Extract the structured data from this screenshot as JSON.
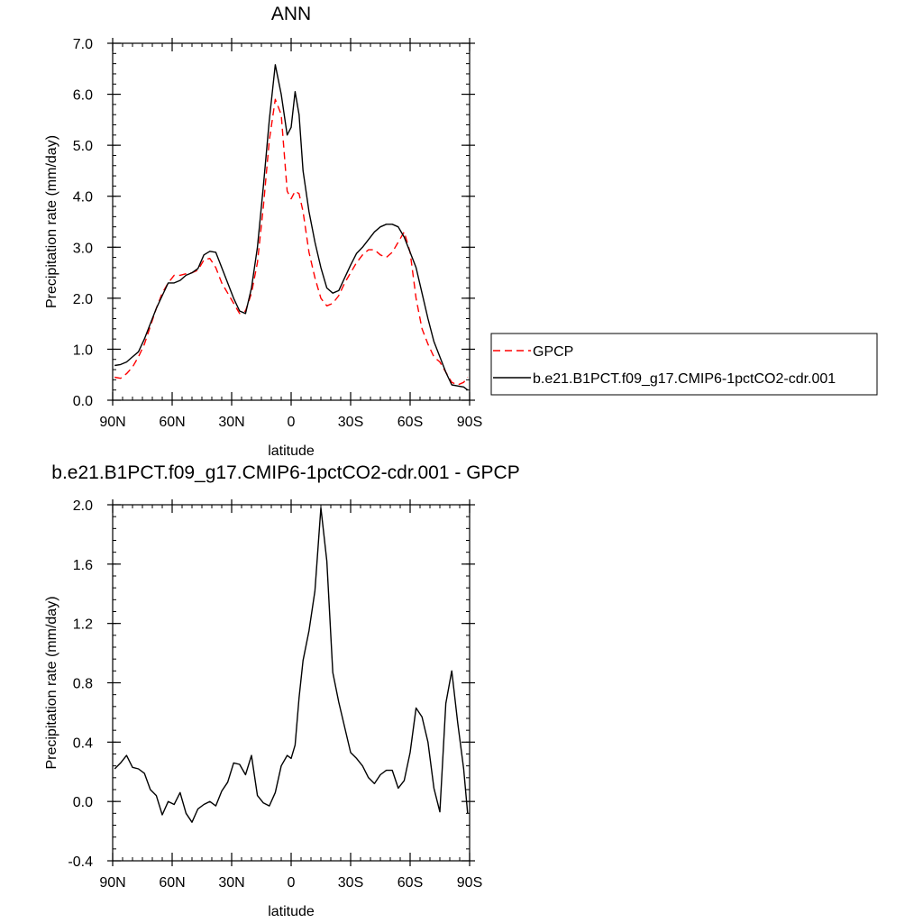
{
  "chart_data": [
    {
      "type": "line",
      "title": "ANN",
      "xlabel": "latitude",
      "ylabel": "Precipitation rate (mm/day)",
      "xlim": [
        -90,
        90
      ],
      "ylim": [
        0,
        7
      ],
      "x_ticks": [
        -90,
        -60,
        -30,
        0,
        30,
        60,
        90
      ],
      "x_tick_labels": [
        "90N",
        "60N",
        "30N",
        "0",
        "30S",
        "60S",
        "90S"
      ],
      "y_ticks": [
        0,
        1,
        2,
        3,
        4,
        5,
        6,
        7
      ],
      "y_tick_labels": [
        "0.0",
        "1.0",
        "2.0",
        "3.0",
        "4.0",
        "5.0",
        "6.0",
        "7.0"
      ],
      "legend_position": "right",
      "series": [
        {
          "name": "GPCP",
          "color": "#ff0000",
          "style": "dashed",
          "x": [
            -89,
            -86,
            -83,
            -80,
            -77,
            -74,
            -71,
            -68,
            -65,
            -62,
            -59,
            -56,
            -53,
            -50,
            -47,
            -44,
            -41,
            -38,
            -35,
            -32,
            -29,
            -26,
            -23,
            -20,
            -17,
            -14,
            -11,
            -8,
            -5,
            -2,
            0,
            2,
            4,
            6,
            9,
            12,
            15,
            18,
            21,
            24,
            27,
            30,
            33,
            36,
            39,
            42,
            45,
            48,
            51,
            54,
            57,
            60,
            63,
            66,
            69,
            72,
            75,
            78,
            81,
            84,
            87,
            89
          ],
          "y": [
            0.45,
            0.43,
            0.52,
            0.65,
            0.85,
            1.1,
            1.45,
            1.8,
            2.1,
            2.3,
            2.45,
            2.45,
            2.48,
            2.5,
            2.55,
            2.75,
            2.78,
            2.6,
            2.3,
            2.1,
            1.9,
            1.7,
            1.75,
            2.1,
            2.7,
            3.8,
            5.1,
            5.9,
            5.6,
            4.1,
            3.95,
            4.1,
            4.05,
            3.7,
            2.9,
            2.4,
            2.0,
            1.85,
            1.9,
            2.05,
            2.3,
            2.5,
            2.7,
            2.85,
            2.95,
            2.95,
            2.85,
            2.8,
            2.9,
            3.1,
            3.3,
            2.9,
            2.0,
            1.4,
            1.1,
            0.85,
            0.75,
            0.55,
            0.35,
            0.3,
            0.35,
            0.45
          ]
        },
        {
          "name": "b.e21.B1PCT.f09_g17.CMIP6-1pctCO2-cdr.001",
          "color": "#000000",
          "style": "solid",
          "x": [
            -89,
            -86,
            -83,
            -80,
            -77,
            -74,
            -71,
            -68,
            -65,
            -62,
            -59,
            -56,
            -53,
            -50,
            -47,
            -44,
            -41,
            -38,
            -35,
            -32,
            -29,
            -26,
            -23,
            -20,
            -17,
            -14,
            -11,
            -8,
            -5,
            -2,
            0,
            2,
            4,
            6,
            9,
            12,
            15,
            18,
            21,
            24,
            27,
            30,
            33,
            36,
            39,
            42,
            45,
            48,
            51,
            54,
            57,
            60,
            63,
            66,
            69,
            72,
            75,
            78,
            81,
            84,
            87,
            89
          ],
          "y": [
            0.68,
            0.7,
            0.75,
            0.85,
            0.95,
            1.2,
            1.5,
            1.8,
            2.05,
            2.3,
            2.3,
            2.35,
            2.45,
            2.5,
            2.58,
            2.85,
            2.92,
            2.9,
            2.6,
            2.3,
            2.0,
            1.75,
            1.7,
            2.2,
            3.0,
            4.2,
            5.5,
            6.58,
            6.0,
            5.2,
            5.35,
            6.05,
            5.6,
            4.5,
            3.7,
            3.1,
            2.6,
            2.2,
            2.1,
            2.15,
            2.4,
            2.65,
            2.88,
            3.0,
            3.15,
            3.3,
            3.4,
            3.45,
            3.45,
            3.4,
            3.2,
            2.9,
            2.6,
            2.1,
            1.6,
            1.15,
            0.85,
            0.55,
            0.3,
            0.28,
            0.26,
            0.2
          ]
        }
      ]
    },
    {
      "type": "line",
      "title": "b.e21.B1PCT.f09_g17.CMIP6-1pctCO2-cdr.001 - GPCP",
      "xlabel": "latitude",
      "ylabel": "Precipitation rate (mm/day)",
      "xlim": [
        -90,
        90
      ],
      "ylim": [
        -0.4,
        2.0
      ],
      "x_ticks": [
        -90,
        -60,
        -30,
        0,
        30,
        60,
        90
      ],
      "x_tick_labels": [
        "90N",
        "60N",
        "30N",
        "0",
        "30S",
        "60S",
        "90S"
      ],
      "y_ticks": [
        -0.4,
        0,
        0.4,
        0.8,
        1.2,
        1.6,
        2.0
      ],
      "y_tick_labels": [
        "-0.4",
        "0.0",
        "0.4",
        "0.8",
        "1.2",
        "1.6",
        "2.0"
      ],
      "series": [
        {
          "color": "#000000",
          "style": "solid",
          "x": [
            -89,
            -86,
            -83,
            -80,
            -77,
            -74,
            -71,
            -68,
            -65,
            -62,
            -59,
            -56,
            -53,
            -50,
            -47,
            -44,
            -41,
            -38,
            -35,
            -32,
            -29,
            -26,
            -23,
            -20,
            -17,
            -14,
            -11,
            -8,
            -5,
            -2,
            0,
            2,
            4,
            6,
            9,
            12,
            15,
            18,
            21,
            24,
            27,
            30,
            33,
            36,
            39,
            42,
            45,
            48,
            51,
            54,
            57,
            60,
            63,
            66,
            69,
            72,
            75,
            78,
            81,
            84,
            87,
            89
          ],
          "y": [
            0.22,
            0.26,
            0.31,
            0.23,
            0.22,
            0.19,
            0.08,
            0.04,
            -0.09,
            0.0,
            -0.02,
            0.06,
            -0.08,
            -0.14,
            -0.05,
            -0.02,
            0.0,
            -0.03,
            0.07,
            0.13,
            0.26,
            0.25,
            0.18,
            0.31,
            0.04,
            -0.01,
            -0.03,
            0.06,
            0.24,
            0.31,
            0.29,
            0.38,
            0.7,
            0.95,
            1.15,
            1.42,
            1.98,
            1.62,
            0.87,
            0.67,
            0.5,
            0.33,
            0.29,
            0.24,
            0.16,
            0.12,
            0.18,
            0.21,
            0.21,
            0.09,
            0.14,
            0.33,
            0.63,
            0.57,
            0.4,
            0.09,
            -0.07,
            0.66,
            0.88,
            0.53,
            0.22,
            -0.08
          ]
        }
      ]
    }
  ]
}
